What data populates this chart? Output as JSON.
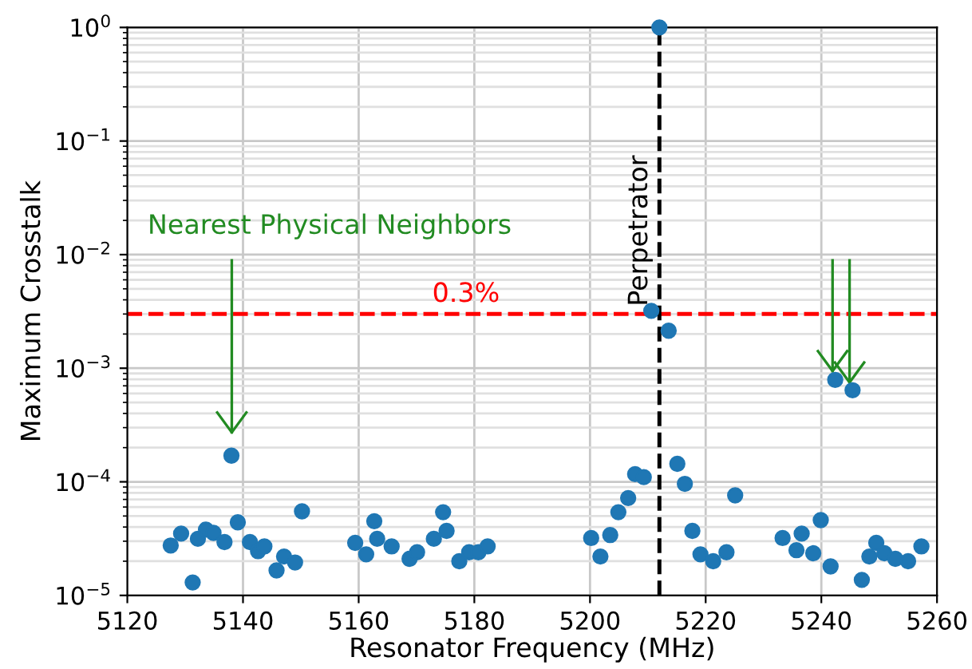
{
  "chart_data": {
    "type": "scatter",
    "xlabel": "Resonator Frequency (MHz)",
    "ylabel": "Maximum Crosstalk",
    "series": [
      {
        "color": "#1f77b4",
        "x": [
          5127.5,
          5129.3,
          5131.3,
          5132.2,
          5133.6,
          5134.9,
          5136.8,
          5138.0,
          5139.1,
          5141.2,
          5142.6,
          5143.7,
          5145.8,
          5147.1,
          5149.0,
          5150.2,
          5159.4,
          5161.3,
          5162.7,
          5163.2,
          5165.7,
          5168.8,
          5170.1,
          5173.0,
          5174.6,
          5175.2,
          5177.4,
          5179.1,
          5180.7,
          5182.3,
          5200.2,
          5201.8,
          5203.5,
          5204.9,
          5206.6,
          5207.8,
          5209.3,
          5210.6,
          5212.0,
          5213.6,
          5215.1,
          5216.4,
          5217.7,
          5219.1,
          5221.3,
          5223.6,
          5225.1,
          5233.3,
          5235.7,
          5236.6,
          5238.6,
          5239.9,
          5241.6,
          5242.4,
          5245.4,
          5247.0,
          5248.3,
          5249.5,
          5250.9,
          5252.8,
          5255.0,
          5257.3
        ],
        "values": [
          2.75e-05,
          3.5e-05,
          1.3e-05,
          3.15e-05,
          3.8e-05,
          3.55e-05,
          2.95e-05,
          0.00017,
          4.4e-05,
          2.95e-05,
          2.45e-05,
          2.7e-05,
          1.66e-05,
          2.2e-05,
          1.95e-05,
          5.5e-05,
          2.9e-05,
          2.3e-05,
          4.5e-05,
          3.15e-05,
          2.7e-05,
          2.1e-05,
          2.4e-05,
          3.15e-05,
          5.4e-05,
          3.7e-05,
          2e-05,
          2.4e-05,
          2.4e-05,
          2.7e-05,
          3.2e-05,
          2.2e-05,
          3.4e-05,
          5.4e-05,
          7.2e-05,
          0.000117,
          0.00011,
          0.0032,
          1.0,
          0.00214,
          0.000144,
          9.6e-05,
          3.7e-05,
          2.3e-05,
          2e-05,
          2.4e-05,
          7.6e-05,
          3.2e-05,
          2.5e-05,
          3.5e-05,
          2.35e-05,
          4.6e-05,
          1.8e-05,
          0.00079,
          0.00064,
          1.37e-05,
          2.2e-05,
          2.9e-05,
          2.35e-05,
          2.1e-05,
          2e-05,
          2.7e-05
        ]
      }
    ],
    "marker": "circle",
    "log": "y",
    "grid": true,
    "xlim": [
      5120,
      5260
    ],
    "xticks": [
      5120,
      5140,
      5160,
      5180,
      5200,
      5220,
      5240,
      5260
    ],
    "ylim": [
      1e-05,
      1
    ],
    "yticks": [
      {
        "value": 1e-05,
        "label": "10$^{−5}$"
      },
      {
        "value": 0.0001,
        "label": "10$^{−4}$"
      },
      {
        "value": 0.001,
        "label": "10$^{−3}$"
      },
      {
        "value": 0.01,
        "label": "10$^{−2}$"
      },
      {
        "value": 0.1,
        "label": "10$^{−1}$"
      },
      {
        "value": 1,
        "label": "10$^{0}$"
      }
    ],
    "ref_lines": [
      {
        "axis": "y",
        "value": 0.003,
        "label": "0.3%",
        "color": "#ff0000",
        "line_style": "dashed"
      },
      {
        "axis": "x",
        "value": 5212,
        "label": "Perpetrator",
        "color": "#000000",
        "line_style": "dashed"
      }
    ],
    "annotations": [
      "Nearest Physical Neighbors"
    ]
  }
}
